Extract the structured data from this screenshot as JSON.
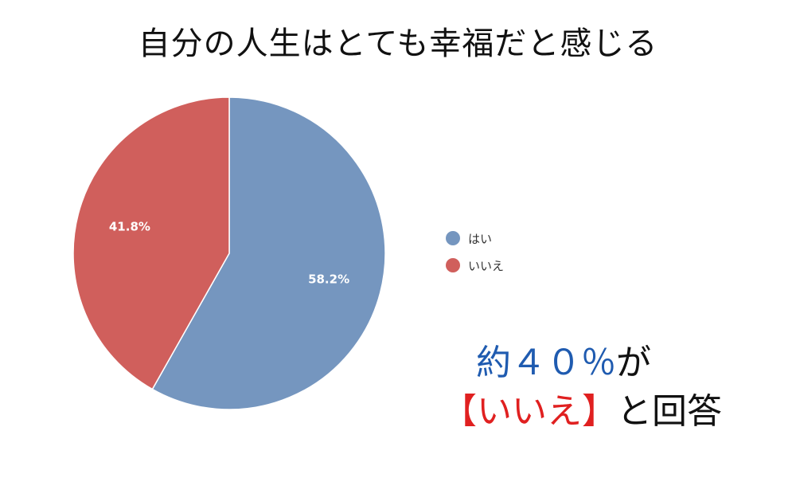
{
  "chart_data": {
    "type": "pie",
    "title": "自分の人生はとても幸福だと感じる",
    "categories": [
      "はい",
      "いいえ"
    ],
    "values": [
      58.2,
      41.8
    ],
    "data_labels": [
      "58.2%",
      "41.8%"
    ],
    "colors": [
      "#7596bf",
      "#d05f5c"
    ],
    "legend": {
      "position": "right",
      "entries": [
        "はい",
        "いいえ"
      ]
    }
  },
  "annotation": {
    "line1": {
      "blue_text": "約４０％",
      "black_text": "が"
    },
    "line2": {
      "red_text": "【いいえ】",
      "black_text": "と回答"
    },
    "colors": {
      "blue": "#1f5bb0",
      "red": "#e02020",
      "black": "#111111"
    }
  }
}
